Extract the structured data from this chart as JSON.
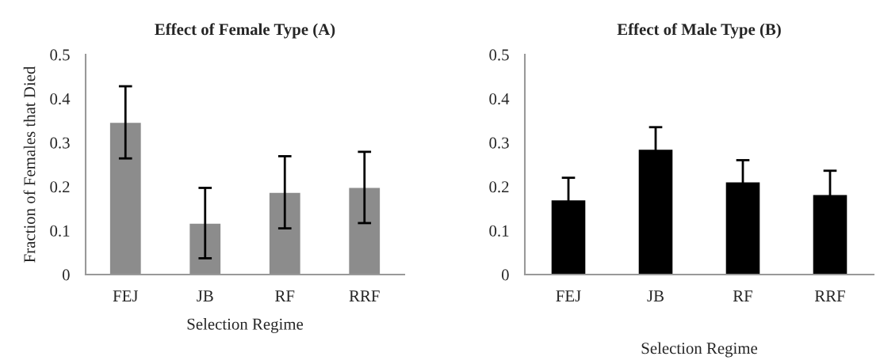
{
  "chart_data": [
    {
      "type": "bar",
      "title": "Effect of Female Type (A)",
      "xlabel": "Selection Regime",
      "ylabel": "Fraction of Females that Died",
      "categories": [
        "FEJ",
        "JB",
        "RF",
        "RRF"
      ],
      "values": [
        0.346,
        0.117,
        0.187,
        0.198
      ],
      "errors": [
        0.082,
        0.08,
        0.082,
        0.081
      ],
      "color": "#8c8c8c",
      "ylim": [
        0,
        0.5
      ],
      "yticks": [
        {
          "value": 0,
          "label": "0"
        },
        0.1,
        0.2,
        0.3,
        0.4,
        0.5
      ],
      "grid": false,
      "legend": false
    },
    {
      "type": "bar",
      "title": "Effect of Male Type (B)",
      "xlabel": "Selection Regime",
      "categories": [
        "FEJ",
        "JB",
        "RF",
        "RRF"
      ],
      "values": [
        0.17,
        0.285,
        0.211,
        0.182
      ],
      "errors": [
        0.05,
        0.05,
        0.049,
        0.054
      ],
      "color": "#000000",
      "ylim": [
        0,
        0.5
      ],
      "yticks": [
        {
          "value": 0,
          "label": "0"
        },
        0.1,
        0.2,
        0.3,
        0.4,
        0.5
      ],
      "grid": false,
      "legend": false
    }
  ]
}
